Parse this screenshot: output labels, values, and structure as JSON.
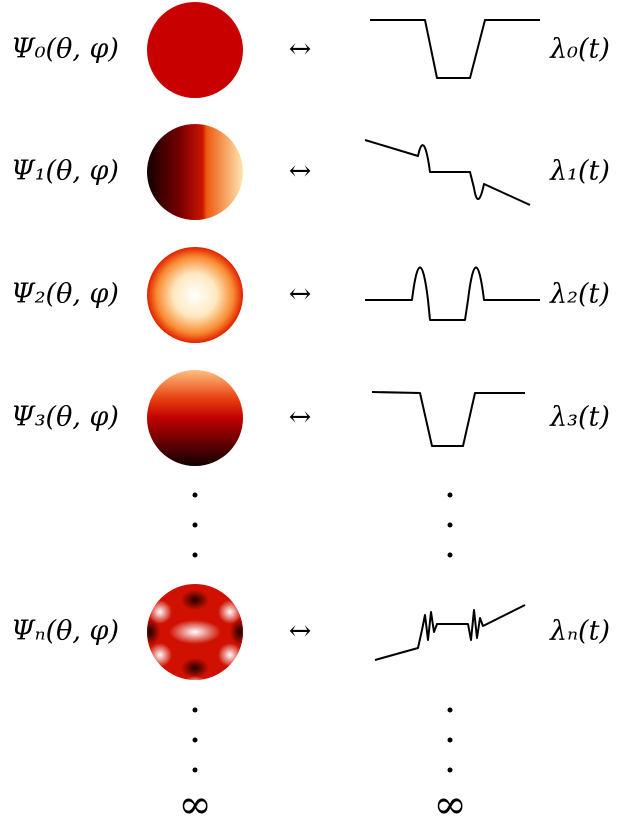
{
  "rows": [
    {
      "left": "Ψ₀(θ, φ)",
      "arrow": "↔",
      "right": "λ₀(t)"
    },
    {
      "left": "Ψ₁(θ, φ)",
      "arrow": "↔",
      "right": "λ₁(t)"
    },
    {
      "left": "Ψ₂(θ, φ)",
      "arrow": "↔",
      "right": "λ₂(t)"
    },
    {
      "left": "Ψ₃(θ, φ)",
      "arrow": "↔",
      "right": "λ₃(t)"
    },
    {
      "left": "Ψₙ(θ, φ)",
      "arrow": "↔",
      "right": "λₙ(t)"
    }
  ],
  "footer": {
    "left": "∞",
    "right": "∞"
  }
}
